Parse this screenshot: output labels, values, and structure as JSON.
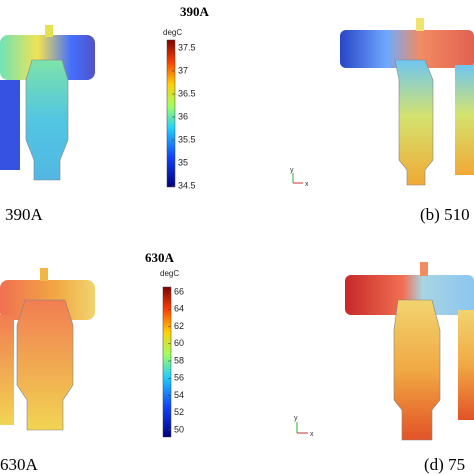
{
  "panels": [
    {
      "title": "390A",
      "unit": "degC",
      "colorbar_ticks": [
        "37.5",
        "37",
        "36.5",
        "36",
        "35.5",
        "35",
        "34.5"
      ],
      "caption": "390A"
    },
    {
      "caption": "(b)  510",
      "axis_y": "y",
      "axis_x": "x"
    },
    {
      "title": "630A",
      "unit": "degC",
      "colorbar_ticks": [
        "66",
        "64",
        "62",
        "60",
        "58",
        "56",
        "54",
        "52",
        "50"
      ],
      "caption": "630A"
    },
    {
      "caption": "(d)  75",
      "axis_y": "y",
      "axis_x": "x"
    }
  ]
}
